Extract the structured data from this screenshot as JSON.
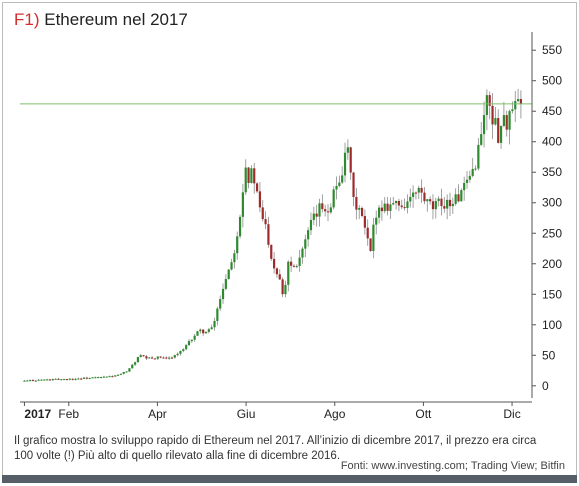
{
  "header": {
    "prefix": "F1)",
    "title": "Ethereum nel 2017"
  },
  "caption": "Il grafico mostra lo sviluppo rapido di Ethereum nel 2017. All’inizio di dicembre 2017, il prezzo era circa 100 volte (!) Più alto di quello rilevato alla fine di dicembre 2016.",
  "source": "Fonti: www.investing.com; Trading View; Bitfin",
  "colors": {
    "up": "#2f8a2f",
    "down": "#9e2b2b",
    "wick": "#8a8a8a",
    "reference": "#7cbf6a",
    "accent": "#d0312d"
  },
  "chart_data": {
    "type": "candlestick",
    "title": "Ethereum nel 2017",
    "x_ticks": [
      {
        "label": "2017",
        "x": 0
      },
      {
        "label": "Feb",
        "x": 1
      },
      {
        "label": "Apr",
        "x": 3
      },
      {
        "label": "Giu",
        "x": 5
      },
      {
        "label": "Ago",
        "x": 7
      },
      {
        "label": "Ott",
        "x": 9
      },
      {
        "label": "Dic",
        "x": 11
      }
    ],
    "y_ticks": [
      0,
      50,
      100,
      150,
      200,
      250,
      300,
      350,
      400,
      450,
      500,
      550
    ],
    "ylim": [
      -20,
      570
    ],
    "xlim": [
      -0.1,
      11.45
    ],
    "reference_line": 462,
    "close_series": [
      [
        0.0,
        8
      ],
      [
        0.2,
        9
      ],
      [
        0.4,
        10
      ],
      [
        0.6,
        10
      ],
      [
        0.8,
        11
      ],
      [
        1.0,
        11
      ],
      [
        1.25,
        12
      ],
      [
        1.5,
        13
      ],
      [
        1.75,
        14
      ],
      [
        2.0,
        16
      ],
      [
        2.15,
        18
      ],
      [
        2.3,
        24
      ],
      [
        2.45,
        35
      ],
      [
        2.6,
        50
      ],
      [
        2.75,
        45
      ],
      [
        2.9,
        45
      ],
      [
        3.05,
        47
      ],
      [
        3.2,
        44
      ],
      [
        3.4,
        50
      ],
      [
        3.6,
        60
      ],
      [
        3.8,
        80
      ],
      [
        3.95,
        90
      ],
      [
        4.1,
        88
      ],
      [
        4.25,
        95
      ],
      [
        4.4,
        140
      ],
      [
        4.55,
        180
      ],
      [
        4.7,
        210
      ],
      [
        4.82,
        260
      ],
      [
        4.9,
        300
      ],
      [
        4.97,
        370
      ],
      [
        5.05,
        340
      ],
      [
        5.15,
        350
      ],
      [
        5.3,
        290
      ],
      [
        5.45,
        260
      ],
      [
        5.6,
        200
      ],
      [
        5.75,
        180
      ],
      [
        5.85,
        145
      ],
      [
        5.95,
        205
      ],
      [
        6.1,
        195
      ],
      [
        6.3,
        230
      ],
      [
        6.5,
        270
      ],
      [
        6.7,
        295
      ],
      [
        6.85,
        290
      ],
      [
        7.0,
        320
      ],
      [
        7.15,
        350
      ],
      [
        7.3,
        385
      ],
      [
        7.42,
        300
      ],
      [
        7.55,
        290
      ],
      [
        7.7,
        250
      ],
      [
        7.8,
        215
      ],
      [
        7.92,
        285
      ],
      [
        8.1,
        295
      ],
      [
        8.3,
        300
      ],
      [
        8.5,
        295
      ],
      [
        8.7,
        305
      ],
      [
        8.9,
        320
      ],
      [
        9.05,
        300
      ],
      [
        9.2,
        290
      ],
      [
        9.4,
        300
      ],
      [
        9.6,
        300
      ],
      [
        9.8,
        310
      ],
      [
        10.0,
        330
      ],
      [
        10.15,
        360
      ],
      [
        10.3,
        410
      ],
      [
        10.4,
        470
      ],
      [
        10.5,
        460
      ],
      [
        10.6,
        430
      ],
      [
        10.7,
        410
      ],
      [
        10.8,
        440
      ],
      [
        10.9,
        430
      ],
      [
        11.0,
        450
      ],
      [
        11.1,
        460
      ],
      [
        11.2,
        455
      ]
    ]
  }
}
